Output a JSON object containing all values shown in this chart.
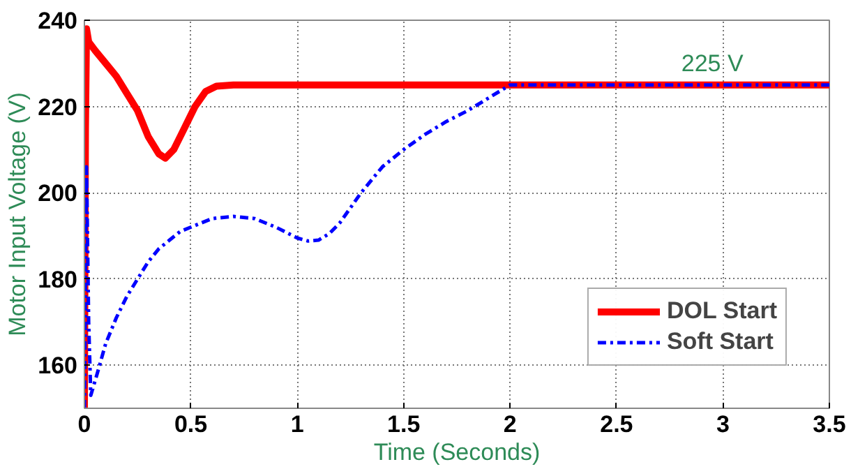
{
  "chart_data": {
    "type": "line",
    "xlabel": "Time (Seconds)",
    "ylabel": "Motor Input Voltage (V)",
    "xlim": [
      0,
      3.5
    ],
    "xticks": [
      0,
      0.5,
      1,
      1.5,
      2,
      2.5,
      3,
      3.5
    ],
    "ylim": [
      150,
      240
    ],
    "yticks": [
      160,
      180,
      200,
      220,
      240
    ],
    "grid": true,
    "legend": "bottom right",
    "marker": "none",
    "annotations": [
      {
        "text": "225 V",
        "x": 2.95,
        "y": 225
      }
    ],
    "series": [
      {
        "name": "DOL Start",
        "color": "#ff0000",
        "line_style": "solid",
        "x": [
          0,
          0.005,
          0.01,
          0.02,
          0.05,
          0.1,
          0.15,
          0.2,
          0.25,
          0.3,
          0.35,
          0.38,
          0.42,
          0.47,
          0.52,
          0.57,
          0.62,
          0.7,
          1.0,
          2.0,
          3.0,
          3.5
        ],
        "values": [
          150,
          215,
          238,
          235,
          233,
          230,
          227,
          223,
          219,
          213,
          209,
          208,
          210,
          215,
          220,
          223.5,
          224.7,
          225,
          225,
          225,
          225,
          225
        ]
      },
      {
        "name": "Soft Start",
        "color": "#0000ff",
        "line_style": "dashed",
        "x": [
          0,
          0.005,
          0.01,
          0.02,
          0.03,
          0.06,
          0.1,
          0.15,
          0.2,
          0.25,
          0.3,
          0.35,
          0.4,
          0.45,
          0.5,
          0.6,
          0.7,
          0.8,
          0.9,
          1.0,
          1.05,
          1.1,
          1.15,
          1.2,
          1.3,
          1.4,
          1.5,
          1.6,
          1.7,
          1.8,
          1.9,
          2.0,
          2.5,
          3.0,
          3.5
        ],
        "values": [
          150,
          180,
          206,
          170,
          153,
          158,
          165,
          171,
          176,
          180,
          184,
          187,
          189,
          191,
          192,
          194,
          194.5,
          194,
          192,
          189.5,
          188.8,
          189,
          190.5,
          193,
          200,
          206,
          210,
          213.5,
          216.5,
          219,
          222,
          225,
          225,
          225,
          225
        ]
      }
    ]
  }
}
